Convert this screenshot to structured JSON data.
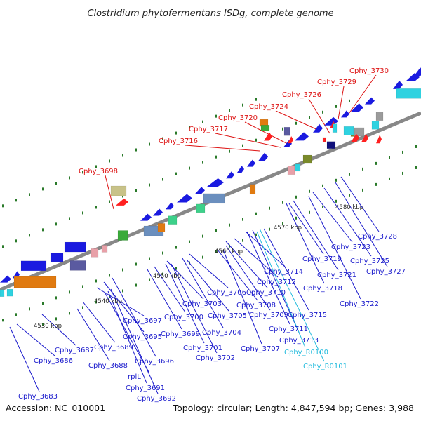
{
  "title": "Clostridium phytofermentans ISDg, complete genome",
  "footer": {
    "accession": "Accession: NC_010001",
    "summary": "Topology: circular; Length: 4,847,594 bp; Genes: 3,988"
  },
  "colors": {
    "red_label": "#dd1111",
    "blue_label": "#1a1acc",
    "cyan_label": "#22bbdd",
    "backbone": "#888888",
    "tick": "#2a7a2a"
  },
  "scale_labels": [
    "4530 kbp",
    "4540 kbp",
    "4550 kbp",
    "4560 kbp",
    "4570 kbp",
    "4580 kbp"
  ],
  "red_labels": [
    "Cphy_3698",
    "Cphy_3716",
    "Cphy_3717",
    "Cphy_3720",
    "Cphy_3724",
    "Cphy_3726",
    "Cphy_3729",
    "Cphy_3730"
  ],
  "blue_labels": [
    "Cphy_3683",
    "Cphy_3686",
    "Cphy_3687",
    "Cphy_3688",
    "Cphy_3689",
    "rplL",
    "Cphy_3691",
    "Cphy_3692",
    "Cphy_3695",
    "Cphy_3696",
    "Cphy_3697",
    "Cphy_3699",
    "Cphy_3700",
    "Cphy_3701",
    "Cphy_3702",
    "Cphy_3703",
    "Cphy_3704",
    "Cphy_3705",
    "Cphy_3706",
    "Cphy_3707",
    "Cphy_3708",
    "Cphy_3709",
    "Cphy_3710",
    "Cphy_3711",
    "Cphy_3712",
    "Cphy_3713",
    "Cphy_3714",
    "Cphy_3715",
    "Cphy_3718",
    "Cphy_3719",
    "Cphy_3721",
    "Cphy_3722",
    "Cphy_3723",
    "Cphy_3725",
    "Cphy_3727",
    "Cphy_3728"
  ],
  "cyan_labels": [
    "Cphy_R0100",
    "Cphy_R0101"
  ]
}
